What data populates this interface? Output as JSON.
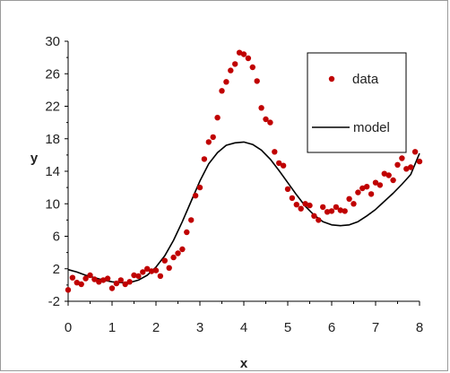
{
  "chart_data": {
    "type": "scatter",
    "xlabel": "x",
    "ylabel": "y",
    "xlim": [
      0,
      8
    ],
    "ylim": [
      -2,
      30
    ],
    "x_ticks": [
      0,
      1,
      2,
      3,
      4,
      5,
      6,
      7,
      8
    ],
    "y_ticks": [
      -2,
      2,
      6,
      10,
      14,
      18,
      22,
      26,
      30
    ],
    "x_tick_labels": [
      "0",
      "1",
      "2",
      "3",
      "4",
      "5",
      "6",
      "7",
      "8"
    ],
    "y_tick_labels": [
      "-2",
      "2",
      "6",
      "10",
      "14",
      "18",
      "22",
      "26",
      "30"
    ],
    "grid": false,
    "legend_position": "top-right",
    "series": [
      {
        "name": "data",
        "kind": "scatter",
        "color": "#c00000",
        "points": [
          [
            0.0,
            -0.6
          ],
          [
            0.1,
            0.9
          ],
          [
            0.2,
            0.3
          ],
          [
            0.3,
            0.1
          ],
          [
            0.4,
            0.8
          ],
          [
            0.5,
            1.2
          ],
          [
            0.6,
            0.7
          ],
          [
            0.7,
            0.4
          ],
          [
            0.8,
            0.6
          ],
          [
            0.9,
            0.8
          ],
          [
            1.0,
            -0.4
          ],
          [
            1.1,
            0.2
          ],
          [
            1.2,
            0.6
          ],
          [
            1.3,
            0.1
          ],
          [
            1.4,
            0.4
          ],
          [
            1.5,
            1.2
          ],
          [
            1.6,
            1.1
          ],
          [
            1.7,
            1.6
          ],
          [
            1.8,
            2.0
          ],
          [
            1.9,
            1.7
          ],
          [
            2.0,
            1.8
          ],
          [
            2.1,
            1.1
          ],
          [
            2.2,
            3.0
          ],
          [
            2.3,
            2.1
          ],
          [
            2.4,
            3.4
          ],
          [
            2.5,
            3.9
          ],
          [
            2.6,
            4.4
          ],
          [
            2.7,
            6.5
          ],
          [
            2.8,
            8.0
          ],
          [
            2.9,
            11.0
          ],
          [
            3.0,
            12.0
          ],
          [
            3.1,
            15.5
          ],
          [
            3.2,
            17.6
          ],
          [
            3.3,
            18.2
          ],
          [
            3.4,
            20.6
          ],
          [
            3.5,
            23.9
          ],
          [
            3.6,
            25.0
          ],
          [
            3.7,
            26.4
          ],
          [
            3.8,
            27.2
          ],
          [
            3.9,
            28.6
          ],
          [
            4.0,
            28.4
          ],
          [
            4.1,
            27.9
          ],
          [
            4.2,
            26.8
          ],
          [
            4.3,
            25.1
          ],
          [
            4.4,
            21.8
          ],
          [
            4.5,
            20.4
          ],
          [
            4.6,
            20.0
          ],
          [
            4.7,
            16.4
          ],
          [
            4.8,
            15.0
          ],
          [
            4.9,
            14.7
          ],
          [
            5.0,
            11.8
          ],
          [
            5.1,
            10.7
          ],
          [
            5.2,
            9.9
          ],
          [
            5.3,
            9.4
          ],
          [
            5.4,
            10.0
          ],
          [
            5.5,
            9.8
          ],
          [
            5.6,
            8.5
          ],
          [
            5.7,
            8.0
          ],
          [
            5.8,
            9.6
          ],
          [
            5.9,
            9.0
          ],
          [
            6.0,
            9.1
          ],
          [
            6.1,
            9.6
          ],
          [
            6.2,
            9.2
          ],
          [
            6.3,
            9.1
          ],
          [
            6.4,
            10.6
          ],
          [
            6.5,
            10.0
          ],
          [
            6.6,
            11.4
          ],
          [
            6.7,
            11.9
          ],
          [
            6.8,
            12.1
          ],
          [
            6.9,
            11.2
          ],
          [
            7.0,
            12.6
          ],
          [
            7.1,
            12.3
          ],
          [
            7.2,
            13.7
          ],
          [
            7.3,
            13.5
          ],
          [
            7.4,
            12.9
          ],
          [
            7.5,
            14.8
          ],
          [
            7.6,
            15.6
          ],
          [
            7.7,
            14.3
          ],
          [
            7.8,
            14.5
          ],
          [
            7.9,
            16.4
          ],
          [
            8.0,
            15.2
          ]
        ]
      },
      {
        "name": "model",
        "kind": "line",
        "color": "#000000",
        "points": [
          [
            0.0,
            1.9
          ],
          [
            0.2,
            1.6
          ],
          [
            0.4,
            1.2
          ],
          [
            0.6,
            0.9
          ],
          [
            0.8,
            0.6
          ],
          [
            1.0,
            0.4
          ],
          [
            1.2,
            0.3
          ],
          [
            1.4,
            0.3
          ],
          [
            1.6,
            0.6
          ],
          [
            1.8,
            1.2
          ],
          [
            2.0,
            2.2
          ],
          [
            2.2,
            3.6
          ],
          [
            2.4,
            5.5
          ],
          [
            2.6,
            7.8
          ],
          [
            2.8,
            10.3
          ],
          [
            3.0,
            12.8
          ],
          [
            3.2,
            14.9
          ],
          [
            3.4,
            16.3
          ],
          [
            3.6,
            17.2
          ],
          [
            3.8,
            17.5
          ],
          [
            4.0,
            17.6
          ],
          [
            4.2,
            17.3
          ],
          [
            4.4,
            16.6
          ],
          [
            4.6,
            15.5
          ],
          [
            4.8,
            14.1
          ],
          [
            5.0,
            12.6
          ],
          [
            5.2,
            11.1
          ],
          [
            5.4,
            9.7
          ],
          [
            5.6,
            8.6
          ],
          [
            5.8,
            7.8
          ],
          [
            6.0,
            7.4
          ],
          [
            6.2,
            7.3
          ],
          [
            6.4,
            7.4
          ],
          [
            6.6,
            7.8
          ],
          [
            6.8,
            8.5
          ],
          [
            7.0,
            9.3
          ],
          [
            7.2,
            10.3
          ],
          [
            7.4,
            11.3
          ],
          [
            7.6,
            12.4
          ],
          [
            7.8,
            13.6
          ],
          [
            8.0,
            16.2
          ]
        ]
      }
    ]
  }
}
